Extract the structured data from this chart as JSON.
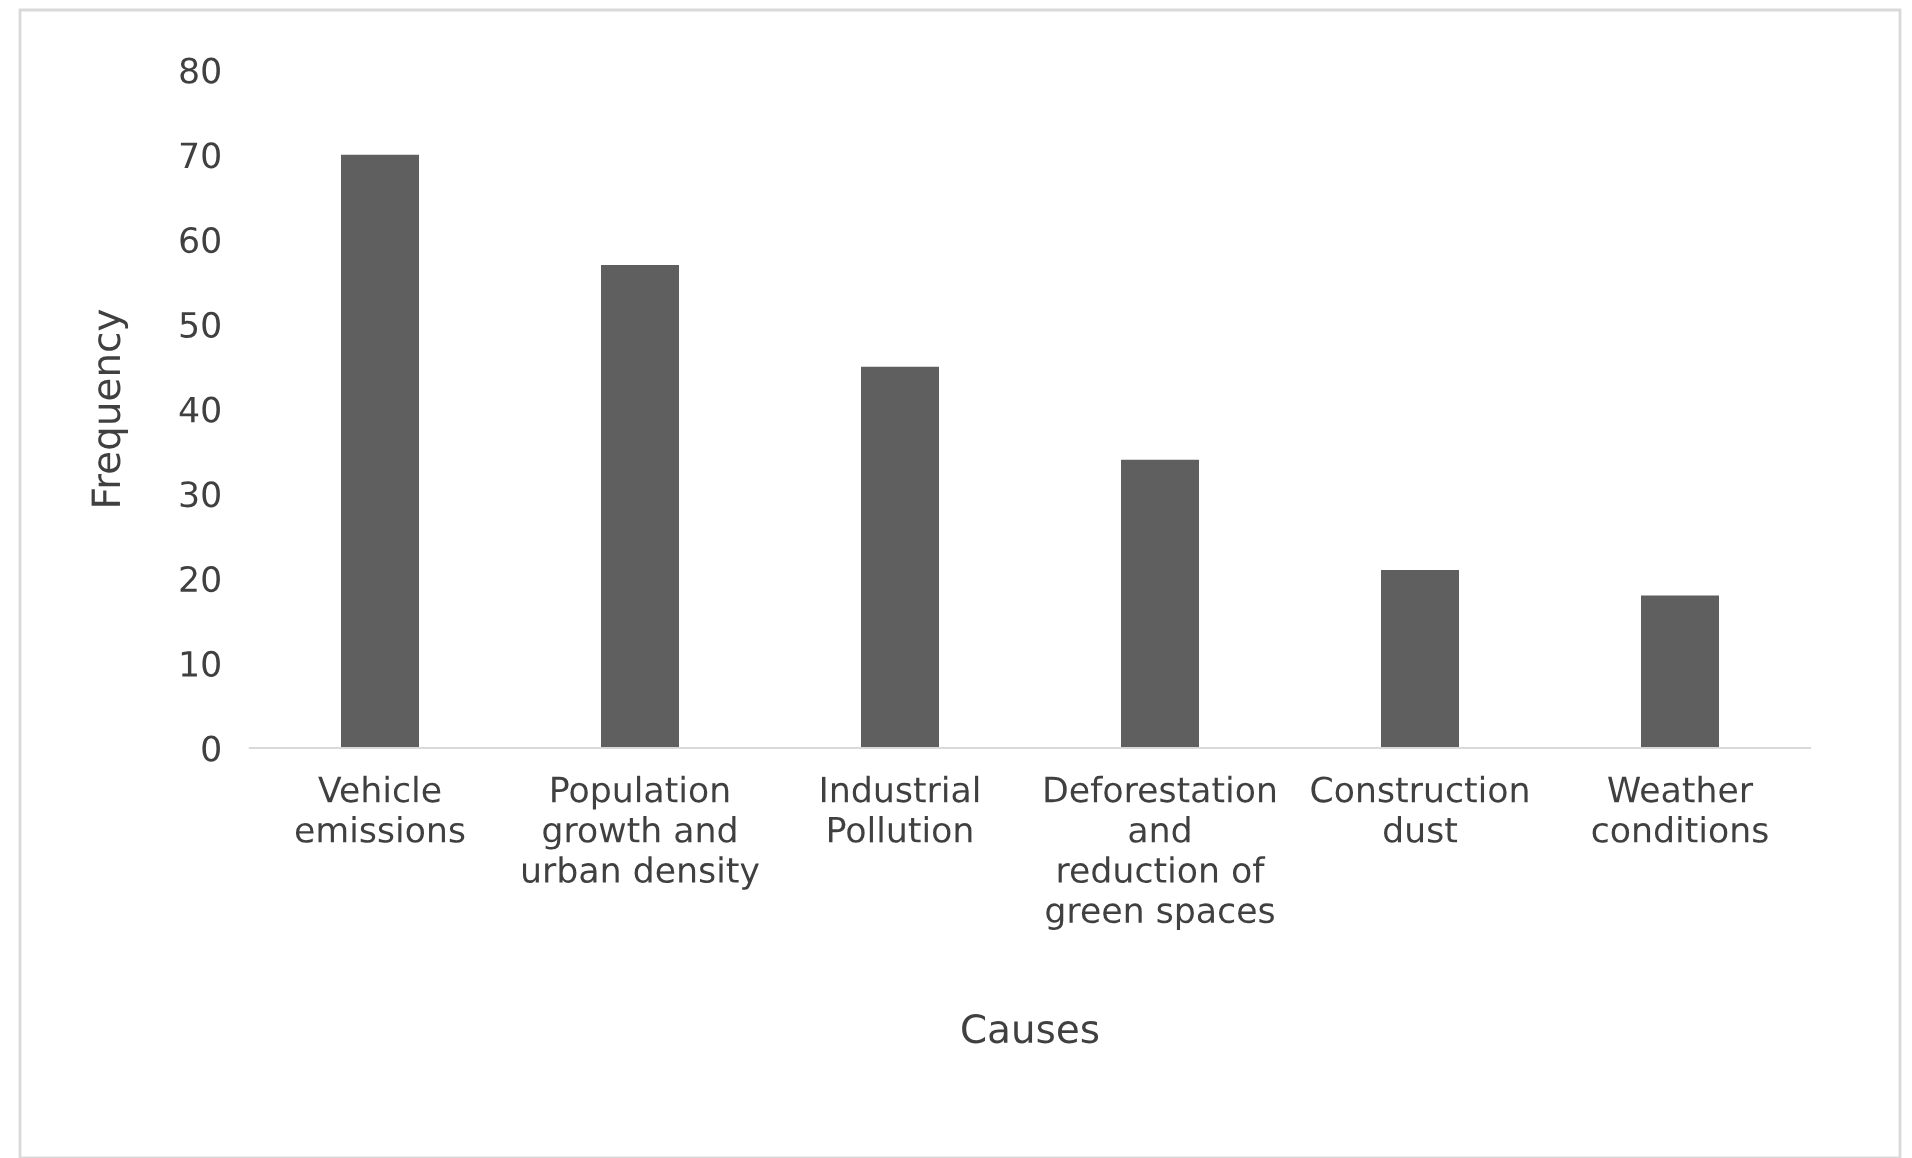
{
  "chart_data": {
    "type": "bar",
    "xlabel": "Causes",
    "ylabel": "Frequency",
    "categories": [
      "Vehicle\nemissions",
      "Population\ngrowth and\nurban density",
      "Industrial\nPollution",
      "Deforestation\nand\nreduction of\ngreen spaces",
      "Construction\ndust",
      "Weather\nconditions"
    ],
    "values": [
      70,
      57,
      45,
      34,
      21,
      18
    ],
    "color": "#5f5f5f",
    "ylim": [
      0,
      80
    ],
    "yticks": [
      0,
      10,
      20,
      30,
      40,
      50,
      60,
      70,
      80
    ],
    "grid": false,
    "legend": false
  }
}
